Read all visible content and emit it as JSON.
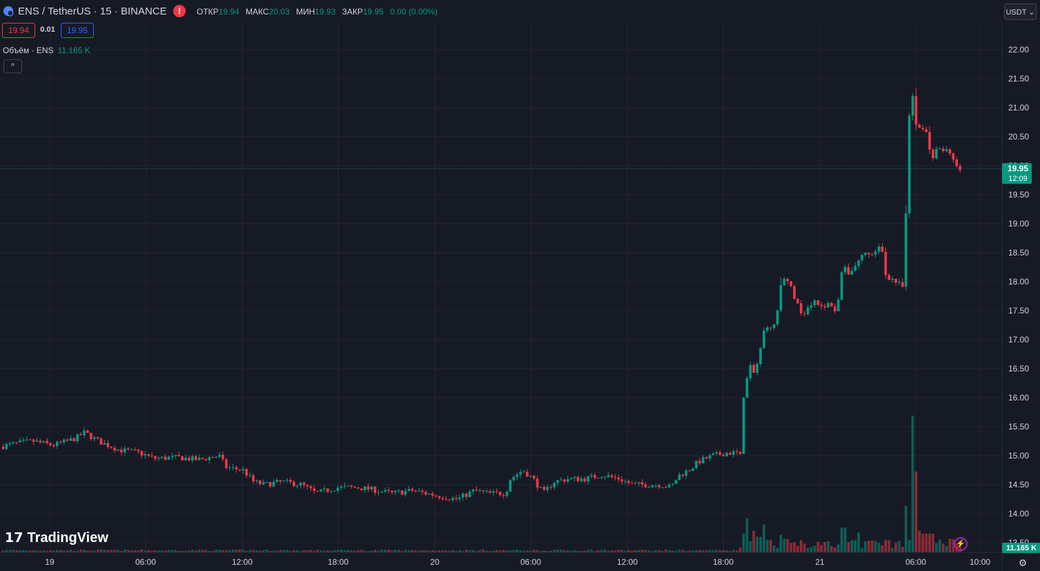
{
  "header": {
    "symbol": "ENS / TetherUS · 15 · BINANCE",
    "ohlc": [
      {
        "key": "ОТКР",
        "value": "19.94"
      },
      {
        "key": "МАКС",
        "value": "20.03"
      },
      {
        "key": "МИН",
        "value": "19.93"
      },
      {
        "key": "ЗАКР",
        "value": "19.95"
      }
    ],
    "change": "0.00 (0.00%)",
    "currency": "USDT"
  },
  "trade": {
    "bid": "19.94",
    "spread": "0.01",
    "ask": "19.95"
  },
  "volume_legend": {
    "label": "Объём · ENS",
    "value": "11.165 K"
  },
  "brand": "TradingView",
  "colors": {
    "up": "#089981",
    "down": "#f23645",
    "bg": "#161a25",
    "grid": "#232632",
    "text": "#d1d4dc"
  },
  "icons": {
    "alert": "!",
    "collapse": "^",
    "bolt": "⚡",
    "settings": "⚙",
    "chevron": "⌄",
    "sym": "ens-coin-icon"
  },
  "chart_data": {
    "type": "candlestick",
    "interval": "15",
    "y_ticks": [
      "22.00",
      "21.50",
      "21.00",
      "20.50",
      "20.00",
      "19.50",
      "19.00",
      "18.50",
      "18.00",
      "17.50",
      "17.00",
      "16.50",
      "16.00",
      "15.50",
      "15.00",
      "14.50",
      "14.00",
      "13.50"
    ],
    "x_ticks": [
      "19",
      "06:00",
      "12:00",
      "18:00",
      "20",
      "06:00",
      "12:00",
      "18:00",
      "21",
      "06:00",
      "10:00"
    ],
    "ylim": [
      13.5,
      22.1
    ],
    "last_price": "19.95",
    "countdown": "12:09",
    "volume_last": "11.165 K",
    "price_path": [
      [
        0,
        15.15
      ],
      [
        30,
        15.22
      ],
      [
        50,
        15.25
      ],
      [
        80,
        15.18
      ],
      [
        100,
        15.25
      ],
      [
        112,
        15.3
      ],
      [
        125,
        15.4
      ],
      [
        145,
        15.25
      ],
      [
        175,
        15.1
      ],
      [
        205,
        15.05
      ],
      [
        225,
        14.95
      ],
      [
        260,
        14.97
      ],
      [
        290,
        14.93
      ],
      [
        320,
        15.0
      ],
      [
        330,
        14.8
      ],
      [
        355,
        14.75
      ],
      [
        370,
        14.55
      ],
      [
        385,
        14.5
      ],
      [
        410,
        14.55
      ],
      [
        440,
        14.5
      ],
      [
        460,
        14.35
      ],
      [
        490,
        14.45
      ],
      [
        520,
        14.45
      ],
      [
        540,
        14.42
      ],
      [
        570,
        14.35
      ],
      [
        600,
        14.4
      ],
      [
        620,
        14.35
      ],
      [
        640,
        14.3
      ],
      [
        665,
        14.25
      ],
      [
        690,
        14.4
      ],
      [
        710,
        14.35
      ],
      [
        735,
        14.35
      ],
      [
        742,
        14.6
      ],
      [
        760,
        14.75
      ],
      [
        775,
        14.6
      ],
      [
        790,
        14.35
      ],
      [
        805,
        14.55
      ],
      [
        825,
        14.6
      ],
      [
        850,
        14.6
      ],
      [
        875,
        14.67
      ],
      [
        900,
        14.6
      ],
      [
        920,
        14.5
      ],
      [
        945,
        14.5
      ],
      [
        960,
        14.5
      ],
      [
        975,
        14.45
      ],
      [
        985,
        14.65
      ],
      [
        1000,
        14.75
      ],
      [
        1015,
        14.9
      ],
      [
        1035,
        15.0
      ],
      [
        1055,
        15.05
      ],
      [
        1070,
        15.05
      ],
      [
        1076,
        14.98
      ],
      [
        1080,
        16.0
      ],
      [
        1088,
        16.55
      ],
      [
        1096,
        16.4
      ],
      [
        1104,
        16.8
      ],
      [
        1112,
        17.3
      ],
      [
        1120,
        17.15
      ],
      [
        1128,
        17.4
      ],
      [
        1134,
        17.95
      ],
      [
        1142,
        18.05
      ],
      [
        1150,
        17.85
      ],
      [
        1158,
        17.6
      ],
      [
        1166,
        17.45
      ],
      [
        1175,
        17.6
      ],
      [
        1185,
        17.7
      ],
      [
        1195,
        17.5
      ],
      [
        1205,
        17.65
      ],
      [
        1215,
        17.45
      ],
      [
        1223,
        18.25
      ],
      [
        1232,
        18.15
      ],
      [
        1240,
        18.25
      ],
      [
        1248,
        18.4
      ],
      [
        1256,
        18.5
      ],
      [
        1265,
        18.45
      ],
      [
        1272,
        18.55
      ],
      [
        1280,
        18.6
      ],
      [
        1286,
        18.1
      ],
      [
        1295,
        18.05
      ],
      [
        1305,
        17.95
      ],
      [
        1312,
        17.9
      ],
      [
        1316,
        19.5
      ],
      [
        1322,
        21.5
      ],
      [
        1330,
        20.7
      ],
      [
        1338,
        20.65
      ],
      [
        1346,
        20.6
      ],
      [
        1352,
        20.05
      ],
      [
        1360,
        20.35
      ],
      [
        1368,
        20.25
      ],
      [
        1376,
        20.3
      ],
      [
        1382,
        20.2
      ],
      [
        1389,
        19.95
      ]
    ],
    "volume_spikes": [
      [
        1076,
        0.3
      ],
      [
        1084,
        0.55
      ],
      [
        1092,
        0.35
      ],
      [
        1100,
        0.25
      ],
      [
        1106,
        0.45
      ],
      [
        1114,
        0.2
      ],
      [
        1130,
        0.28
      ],
      [
        1138,
        0.22
      ],
      [
        1222,
        0.4
      ],
      [
        1246,
        0.32
      ],
      [
        1286,
        0.2
      ],
      [
        1314,
        0.75
      ],
      [
        1322,
        2.2
      ],
      [
        1328,
        1.3
      ],
      [
        1334,
        0.35
      ],
      [
        1340,
        0.3
      ],
      [
        1346,
        0.3
      ],
      [
        1352,
        0.3
      ]
    ]
  }
}
